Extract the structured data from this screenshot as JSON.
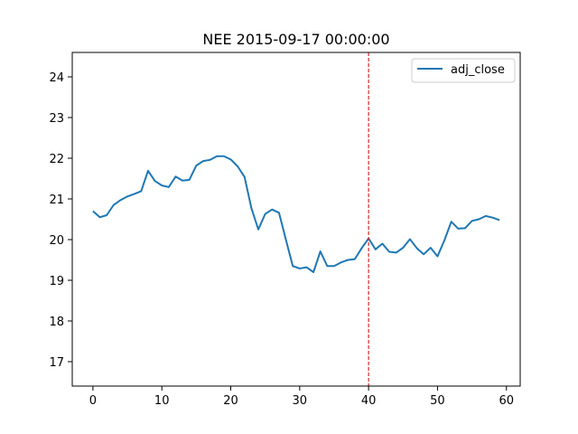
{
  "chart_data": {
    "type": "line",
    "title": "NEE 2015-09-17 00:00:00",
    "xlabel": "",
    "ylabel": "",
    "xlim": [
      -3.0,
      62.0
    ],
    "ylim": [
      16.4,
      24.6
    ],
    "x_ticks": [
      0,
      10,
      20,
      30,
      40,
      50,
      60
    ],
    "y_ticks": [
      17,
      18,
      19,
      20,
      21,
      22,
      23,
      24
    ],
    "grid": false,
    "legend_position": "upper right",
    "vline": {
      "x": 40,
      "color": "#d62728",
      "style": "dashed"
    },
    "series": [
      {
        "name": "adj_close",
        "color": "#1f77b4",
        "x": [
          0,
          1,
          2,
          3,
          4,
          5,
          6,
          7,
          8,
          9,
          10,
          11,
          12,
          13,
          14,
          15,
          16,
          17,
          18,
          19,
          20,
          21,
          22,
          23,
          24,
          25,
          26,
          27,
          28,
          29,
          30,
          31,
          32,
          33,
          34,
          35,
          36,
          37,
          38,
          39,
          40,
          41,
          42,
          43,
          44,
          45,
          46,
          47,
          48,
          49,
          50,
          51,
          52,
          53,
          54,
          55,
          56,
          57,
          58,
          59
        ],
        "values": [
          20.7,
          20.55,
          20.6,
          20.85,
          20.97,
          21.06,
          21.12,
          21.19,
          21.69,
          21.44,
          21.33,
          21.29,
          21.55,
          21.45,
          21.47,
          21.82,
          21.93,
          21.96,
          22.05,
          22.05,
          21.97,
          21.8,
          21.54,
          20.77,
          20.25,
          20.63,
          20.74,
          20.66,
          20.0,
          19.35,
          19.29,
          19.32,
          19.2,
          19.71,
          19.35,
          19.35,
          19.44,
          19.5,
          19.52,
          19.79,
          20.03,
          19.76,
          19.9,
          19.7,
          19.68,
          19.8,
          20.01,
          19.79,
          19.64,
          19.8,
          19.59,
          19.98,
          20.44,
          20.27,
          20.28,
          20.46,
          20.5,
          20.58,
          20.54,
          20.48
        ]
      }
    ]
  }
}
